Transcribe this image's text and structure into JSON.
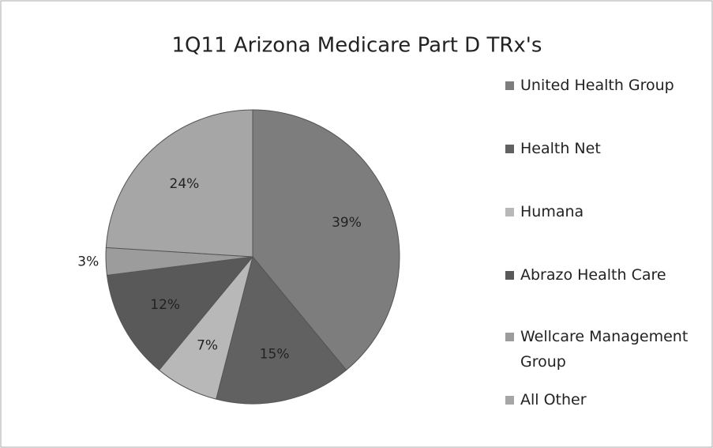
{
  "chart_data": {
    "type": "pie",
    "title": "1Q11 Arizona Medicare Part D TRx's",
    "categories": [
      "United Health Group",
      "Health Net",
      "Humana",
      "Abrazo Health Care",
      "Wellcare Management Group",
      "All Other"
    ],
    "values": [
      39,
      15,
      7,
      12,
      3,
      24
    ],
    "value_labels": [
      "39%",
      "15%",
      "7%",
      "12%",
      "3%",
      "24%"
    ],
    "colors": [
      "#7d7d7d",
      "#616161",
      "#b8b8b8",
      "#595959",
      "#9c9c9c",
      "#a6a6a6"
    ],
    "legend": "right"
  }
}
